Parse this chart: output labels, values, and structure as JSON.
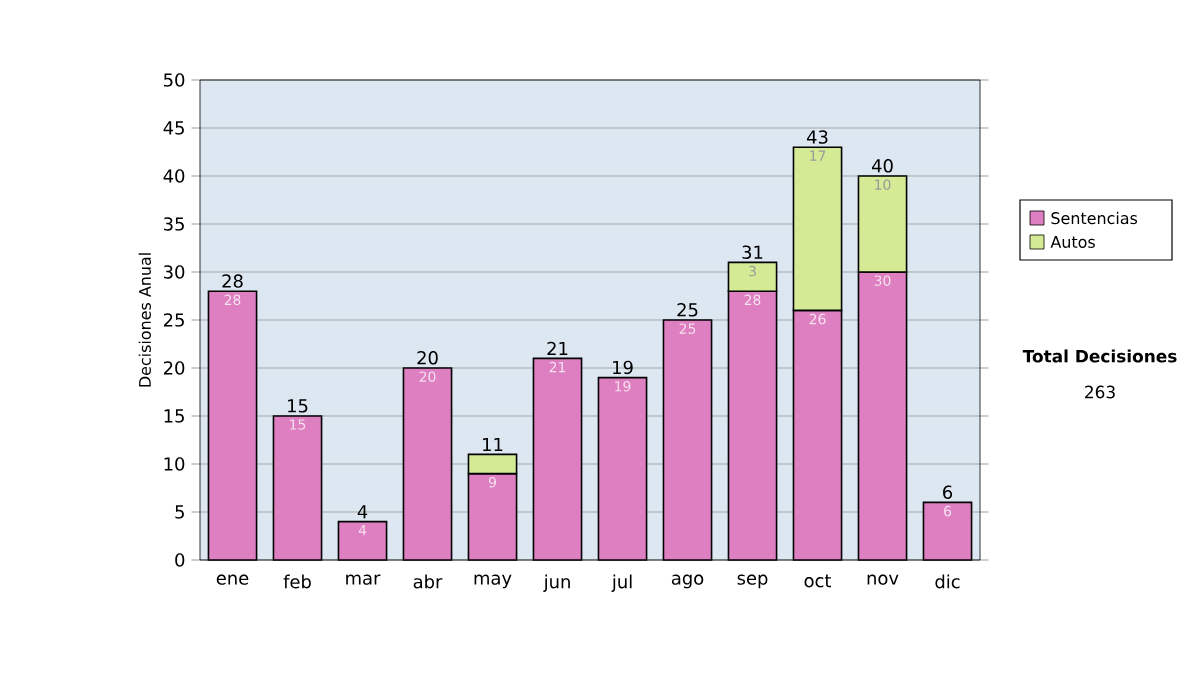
{
  "chart_data": {
    "type": "bar",
    "stacked": true,
    "ylabel": "Decisiones Anual",
    "categories": [
      "ene",
      "feb",
      "mar",
      "abr",
      "may",
      "jun",
      "jul",
      "ago",
      "sep",
      "oct",
      "nov",
      "dic"
    ],
    "series": [
      {
        "name": "Sentencias",
        "color": "#dd7fc0",
        "values": [
          28,
          15,
          4,
          20,
          9,
          21,
          19,
          25,
          28,
          26,
          30,
          6
        ],
        "value_labels": [
          "28",
          "15",
          "4",
          "20",
          "9",
          "21",
          "19",
          "25",
          "28",
          "26",
          "30",
          "6"
        ]
      },
      {
        "name": "Autos",
        "color": "#d4ea94",
        "values": [
          null,
          null,
          null,
          null,
          2,
          null,
          null,
          null,
          3,
          17,
          10,
          null
        ],
        "value_labels": [
          null,
          null,
          null,
          null,
          null,
          null,
          null,
          null,
          "3",
          "17",
          "10",
          null
        ]
      }
    ],
    "totals": [
      "28",
      "15",
      "4",
      "20",
      "11",
      "21",
      "19",
      "25",
      "31",
      "43",
      "40",
      "6"
    ],
    "ylim": [
      0,
      50
    ],
    "yticks": [
      0,
      5,
      10,
      15,
      20,
      25,
      30,
      35,
      40,
      45,
      50
    ],
    "grid": "y",
    "legend": "right",
    "annotations": [
      "Total Decisiones",
      "263"
    ]
  }
}
